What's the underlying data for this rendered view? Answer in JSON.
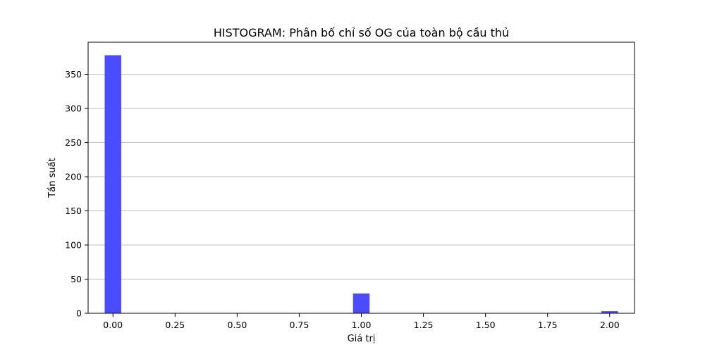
{
  "chart_data": {
    "type": "bar",
    "title": "HISTOGRAM: Phân bố chỉ số OG của toàn bộ cầu thủ",
    "xlabel": "Giá trị",
    "ylabel": "Tần suất",
    "bin_width": 0.0667,
    "bins": [
      {
        "x": 0.0,
        "value": 378
      },
      {
        "x": 1.0,
        "value": 29
      },
      {
        "x": 2.0,
        "value": 3
      }
    ],
    "xlim": [
      -0.1,
      2.1
    ],
    "ylim": [
      0,
      397
    ],
    "xticks": [
      "0.00",
      "0.25",
      "0.50",
      "0.75",
      "1.00",
      "1.25",
      "1.50",
      "1.75",
      "2.00"
    ],
    "xtick_values": [
      0,
      0.25,
      0.5,
      0.75,
      1.0,
      1.25,
      1.5,
      1.75,
      2.0
    ],
    "yticks": [
      "0",
      "50",
      "100",
      "150",
      "200",
      "250",
      "300",
      "350"
    ],
    "ytick_values": [
      0,
      50,
      100,
      150,
      200,
      250,
      300,
      350
    ],
    "grid": "y",
    "bar_color": "#4b4bff",
    "grid_color": "#bfbfbf"
  }
}
